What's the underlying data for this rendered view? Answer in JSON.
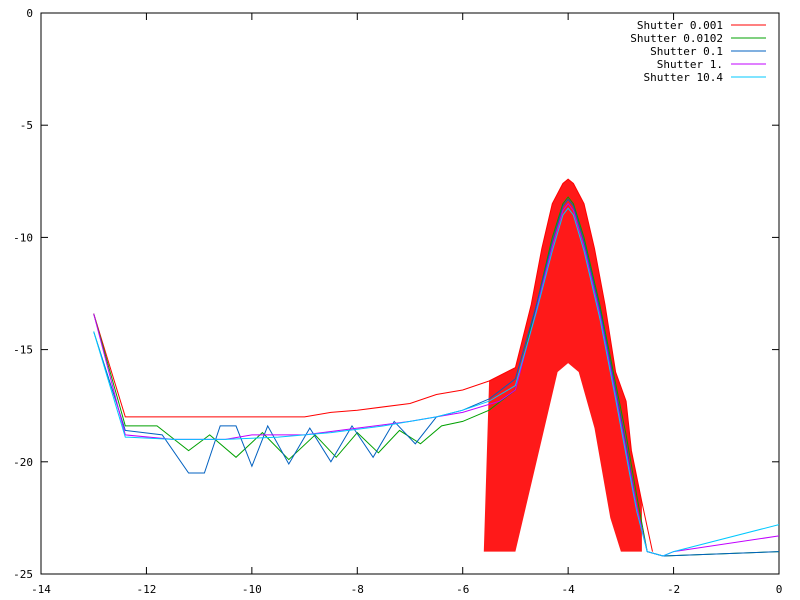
{
  "chart_data": {
    "type": "line",
    "title": "",
    "xlabel": "",
    "ylabel": "",
    "xlim": [
      -14,
      0
    ],
    "ylim": [
      -25,
      0
    ],
    "x_ticks": [
      -14,
      -12,
      -10,
      -8,
      -6,
      -4,
      -2,
      0
    ],
    "y_ticks": [
      0,
      -5,
      -10,
      -15,
      -20,
      -25
    ],
    "x_tick_labels": [
      "-14",
      "-12",
      "-10",
      "-8",
      "-6",
      "-4",
      "-2",
      "0"
    ],
    "y_tick_labels": [
      "0",
      "-5",
      "-10",
      "-15",
      "-20",
      "-25"
    ],
    "grid": false,
    "legend_position": "top-right",
    "series": [
      {
        "name": "Shutter 0.001",
        "color": "#ff0000",
        "points": [
          [
            -13,
            -13.4
          ],
          [
            -12.4,
            -18
          ],
          [
            -11,
            -18
          ],
          [
            -10,
            -18
          ],
          [
            -9,
            -18
          ],
          [
            -8.5,
            -17.8
          ],
          [
            -8,
            -17.7
          ],
          [
            -7,
            -17.4
          ],
          [
            -6.5,
            -17
          ],
          [
            -6,
            -16.8
          ],
          [
            -5.5,
            -16.4
          ],
          [
            -5,
            -15.8
          ],
          [
            -4.7,
            -13
          ],
          [
            -4.5,
            -10.5
          ],
          [
            -4.3,
            -8.5
          ],
          [
            -4.1,
            -7.6
          ],
          [
            -4,
            -7.4
          ],
          [
            -3.9,
            -7.6
          ],
          [
            -3.7,
            -8.5
          ],
          [
            -3.5,
            -10.5
          ],
          [
            -3.3,
            -13
          ],
          [
            -3.1,
            -16
          ],
          [
            -2.9,
            -17.3
          ],
          [
            -2.8,
            -19.5
          ],
          [
            -2.6,
            -21.8
          ],
          [
            -2.4,
            -24
          ]
        ],
        "envelope_low": [
          [
            -5.6,
            -24
          ],
          [
            -5.0,
            -24
          ],
          [
            -4.5,
            -19
          ],
          [
            -4.2,
            -16
          ],
          [
            -4,
            -15.6
          ],
          [
            -3.8,
            -16
          ],
          [
            -3.5,
            -18.5
          ],
          [
            -3.2,
            -22.5
          ],
          [
            -3.0,
            -24
          ],
          [
            -2.6,
            -24
          ]
        ]
      },
      {
        "name": "Shutter 0.0102",
        "color": "#00a000",
        "points": [
          [
            -13,
            -13.4
          ],
          [
            -12.4,
            -18.4
          ],
          [
            -11.8,
            -18.4
          ],
          [
            -11.2,
            -19.5
          ],
          [
            -10.8,
            -18.8
          ],
          [
            -10.3,
            -19.8
          ],
          [
            -9.8,
            -18.7
          ],
          [
            -9.3,
            -19.9
          ],
          [
            -8.8,
            -18.8
          ],
          [
            -8.4,
            -19.8
          ],
          [
            -8,
            -18.7
          ],
          [
            -7.6,
            -19.6
          ],
          [
            -7.2,
            -18.6
          ],
          [
            -6.8,
            -19.2
          ],
          [
            -6.4,
            -18.4
          ],
          [
            -6,
            -18.2
          ],
          [
            -5.5,
            -17.7
          ],
          [
            -5,
            -16.8
          ],
          [
            -4.6,
            -13
          ],
          [
            -4.3,
            -10
          ],
          [
            -4.1,
            -8.5
          ],
          [
            -4,
            -8.2
          ],
          [
            -3.9,
            -8.5
          ],
          [
            -3.7,
            -10
          ],
          [
            -3.4,
            -13
          ],
          [
            -3.1,
            -16.5
          ],
          [
            -2.9,
            -18.8
          ],
          [
            -2.7,
            -21.5
          ],
          [
            -2.5,
            -24
          ],
          [
            -2.2,
            -24.2
          ],
          [
            0,
            -24
          ]
        ]
      },
      {
        "name": "Shutter 0.1",
        "color": "#0060c0",
        "points": [
          [
            -13,
            -14.2
          ],
          [
            -12.4,
            -18.6
          ],
          [
            -11.7,
            -18.8
          ],
          [
            -11.2,
            -20.5
          ],
          [
            -10.9,
            -20.5
          ],
          [
            -10.6,
            -18.4
          ],
          [
            -10.3,
            -18.4
          ],
          [
            -10,
            -20.2
          ],
          [
            -9.7,
            -18.4
          ],
          [
            -9.3,
            -20.1
          ],
          [
            -8.9,
            -18.5
          ],
          [
            -8.5,
            -20
          ],
          [
            -8.1,
            -18.4
          ],
          [
            -7.7,
            -19.8
          ],
          [
            -7.3,
            -18.2
          ],
          [
            -6.9,
            -19.2
          ],
          [
            -6.5,
            -18
          ],
          [
            -6,
            -17.7
          ],
          [
            -5.5,
            -17.2
          ],
          [
            -5,
            -16.3
          ],
          [
            -4.6,
            -13
          ],
          [
            -4.3,
            -10.2
          ],
          [
            -4.1,
            -8.6
          ],
          [
            -4,
            -8.3
          ],
          [
            -3.9,
            -8.6
          ],
          [
            -3.7,
            -10.2
          ],
          [
            -3.4,
            -13.2
          ],
          [
            -3.1,
            -16.8
          ],
          [
            -2.9,
            -19.2
          ],
          [
            -2.7,
            -22
          ],
          [
            -2.5,
            -24
          ],
          [
            -2.2,
            -24.2
          ],
          [
            0,
            -24
          ]
        ]
      },
      {
        "name": "Shutter 1.",
        "color": "#c000ff",
        "points": [
          [
            -13,
            -13.4
          ],
          [
            -12.4,
            -18.8
          ],
          [
            -11.5,
            -19
          ],
          [
            -10.5,
            -19
          ],
          [
            -10,
            -18.8
          ],
          [
            -9,
            -18.8
          ],
          [
            -8,
            -18.5
          ],
          [
            -7,
            -18.2
          ],
          [
            -6,
            -17.8
          ],
          [
            -5.3,
            -17.3
          ],
          [
            -5,
            -16.8
          ],
          [
            -4.6,
            -13.2
          ],
          [
            -4.3,
            -10.4
          ],
          [
            -4.1,
            -8.8
          ],
          [
            -4,
            -8.5
          ],
          [
            -3.9,
            -8.8
          ],
          [
            -3.7,
            -10.4
          ],
          [
            -3.4,
            -13.4
          ],
          [
            -3.1,
            -17
          ],
          [
            -2.9,
            -19.5
          ],
          [
            -2.7,
            -22
          ],
          [
            -2.5,
            -24
          ],
          [
            -2.2,
            -24.2
          ],
          [
            -2,
            -24
          ],
          [
            0,
            -23.3
          ]
        ]
      },
      {
        "name": "Shutter 10.4",
        "color": "#00c8ff",
        "points": [
          [
            -13,
            -14.2
          ],
          [
            -12.4,
            -18.9
          ],
          [
            -11.5,
            -19
          ],
          [
            -10.5,
            -19
          ],
          [
            -9.5,
            -18.9
          ],
          [
            -8.5,
            -18.7
          ],
          [
            -7.5,
            -18.4
          ],
          [
            -6.5,
            -18
          ],
          [
            -6,
            -17.7
          ],
          [
            -5.5,
            -17.3
          ],
          [
            -5,
            -16.6
          ],
          [
            -4.6,
            -13.3
          ],
          [
            -4.3,
            -10.6
          ],
          [
            -4.1,
            -9
          ],
          [
            -4,
            -8.7
          ],
          [
            -3.9,
            -9
          ],
          [
            -3.7,
            -10.6
          ],
          [
            -3.4,
            -13.6
          ],
          [
            -3.1,
            -17.2
          ],
          [
            -2.9,
            -19.7
          ],
          [
            -2.7,
            -22.2
          ],
          [
            -2.5,
            -24
          ],
          [
            -2.2,
            -24.2
          ],
          [
            -2,
            -24
          ],
          [
            0,
            -22.8
          ]
        ]
      }
    ]
  }
}
